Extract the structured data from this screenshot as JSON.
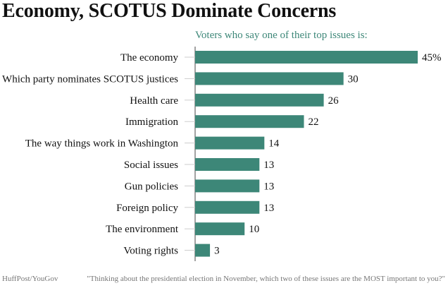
{
  "title": "Economy, SCOTUS Dominate Concerns",
  "subtitle": "Voters who say one of their top issues is:",
  "footer": {
    "source": "HuffPost/YouGov",
    "question": "\"Thinking about the presidential election in November, which two of these issues are the MOST important to you?\""
  },
  "colors": {
    "bar": "#3d8778",
    "subtitle": "#3d8778",
    "axis": "#444444",
    "text": "#111111"
  },
  "chart_data": {
    "type": "bar",
    "orientation": "horizontal",
    "categories": [
      "The economy",
      "Which party nominates SCOTUS justices",
      "Health care",
      "Immigration",
      "The way things work in Washington",
      "Social issues",
      "Gun policies",
      "Foreign policy",
      "The environment",
      "Voting rights"
    ],
    "values": [
      45,
      30,
      26,
      22,
      14,
      13,
      13,
      13,
      10,
      3
    ],
    "value_labels": [
      "45%",
      "30",
      "26",
      "22",
      "14",
      "13",
      "13",
      "13",
      "10",
      "3"
    ],
    "xlim": [
      0,
      45
    ],
    "grid": false
  }
}
